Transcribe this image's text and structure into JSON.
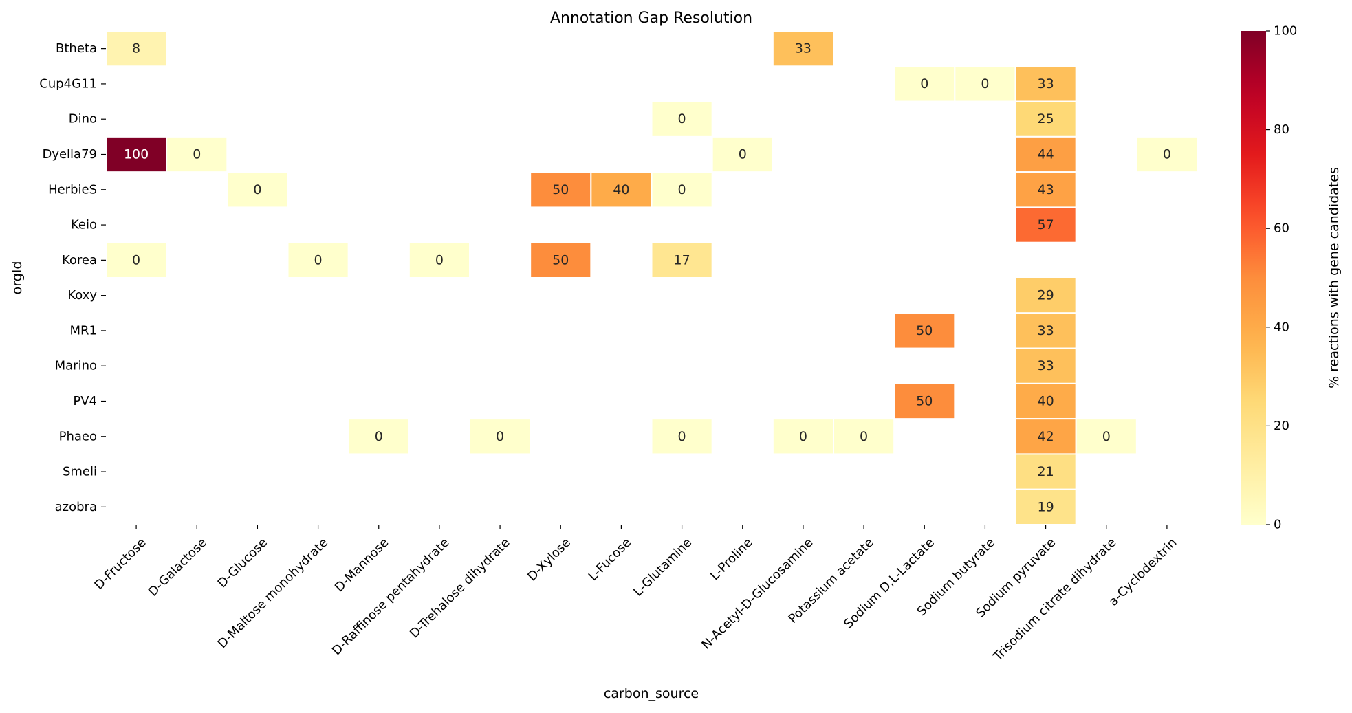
{
  "chart_data": {
    "type": "heatmap",
    "title": "Annotation Gap Resolution",
    "xlabel": "carbon_source",
    "ylabel": "orgId",
    "x_categories": [
      "D-Fructose",
      "D-Galactose",
      "D-Glucose",
      "D-Maltose monohydrate",
      "D-Mannose",
      "D-Raffinose pentahydrate",
      "D-Trehalose dihydrate",
      "D-Xylose",
      "L-Fucose",
      "L-Glutamine",
      "L-Proline",
      "N-Acetyl-D-Glucosamine",
      "Potassium acetate",
      "Sodium D,L-Lactate",
      "Sodium butyrate",
      "Sodium pyruvate",
      "Trisodium citrate dihydrate",
      "a-Cyclodextrin"
    ],
    "y_categories": [
      "Btheta",
      "Cup4G11",
      "Dino",
      "Dyella79",
      "HerbieS",
      "Keio",
      "Korea",
      "Koxy",
      "MR1",
      "Marino",
      "PV4",
      "Phaeo",
      "Smeli",
      "azobra"
    ],
    "values": [
      [
        8,
        null,
        null,
        null,
        null,
        null,
        null,
        null,
        null,
        null,
        null,
        33,
        null,
        null,
        null,
        null,
        null,
        null
      ],
      [
        null,
        null,
        null,
        null,
        null,
        null,
        null,
        null,
        null,
        null,
        null,
        null,
        null,
        0,
        0,
        33,
        null,
        null
      ],
      [
        null,
        null,
        null,
        null,
        null,
        null,
        null,
        null,
        null,
        0,
        null,
        null,
        null,
        null,
        null,
        25,
        null,
        null
      ],
      [
        100,
        0,
        null,
        null,
        null,
        null,
        null,
        null,
        null,
        null,
        0,
        null,
        null,
        null,
        null,
        44,
        null,
        0
      ],
      [
        null,
        null,
        0,
        null,
        null,
        null,
        null,
        50,
        40,
        0,
        null,
        null,
        null,
        null,
        null,
        43,
        null,
        null
      ],
      [
        null,
        null,
        null,
        null,
        null,
        null,
        null,
        null,
        null,
        null,
        null,
        null,
        null,
        null,
        null,
        57,
        null,
        null
      ],
      [
        0,
        null,
        null,
        0,
        null,
        0,
        null,
        50,
        null,
        17,
        null,
        null,
        null,
        null,
        null,
        null,
        null,
        null
      ],
      [
        null,
        null,
        null,
        null,
        null,
        null,
        null,
        null,
        null,
        null,
        null,
        null,
        null,
        null,
        null,
        29,
        null,
        null
      ],
      [
        null,
        null,
        null,
        null,
        null,
        null,
        null,
        null,
        null,
        null,
        null,
        null,
        null,
        50,
        null,
        33,
        null,
        null
      ],
      [
        null,
        null,
        null,
        null,
        null,
        null,
        null,
        null,
        null,
        null,
        null,
        null,
        null,
        null,
        null,
        33,
        null,
        null
      ],
      [
        null,
        null,
        null,
        null,
        null,
        null,
        null,
        null,
        null,
        null,
        null,
        null,
        null,
        50,
        null,
        40,
        null,
        null
      ],
      [
        null,
        null,
        null,
        null,
        0,
        null,
        0,
        null,
        null,
        0,
        null,
        0,
        0,
        null,
        null,
        42,
        0,
        null
      ],
      [
        null,
        null,
        null,
        null,
        null,
        null,
        null,
        null,
        null,
        null,
        null,
        null,
        null,
        null,
        null,
        21,
        null,
        null
      ],
      [
        null,
        null,
        null,
        null,
        null,
        null,
        null,
        null,
        null,
        null,
        null,
        null,
        null,
        null,
        null,
        19,
        null,
        null
      ]
    ],
    "colorbar": {
      "label": "% reactions with gene candidates",
      "range": [
        0,
        100
      ],
      "ticks": [
        0,
        20,
        40,
        60,
        80,
        100
      ],
      "colormap": "YlOrRd"
    },
    "grid": false,
    "cell_border_color": "#ffffff"
  }
}
